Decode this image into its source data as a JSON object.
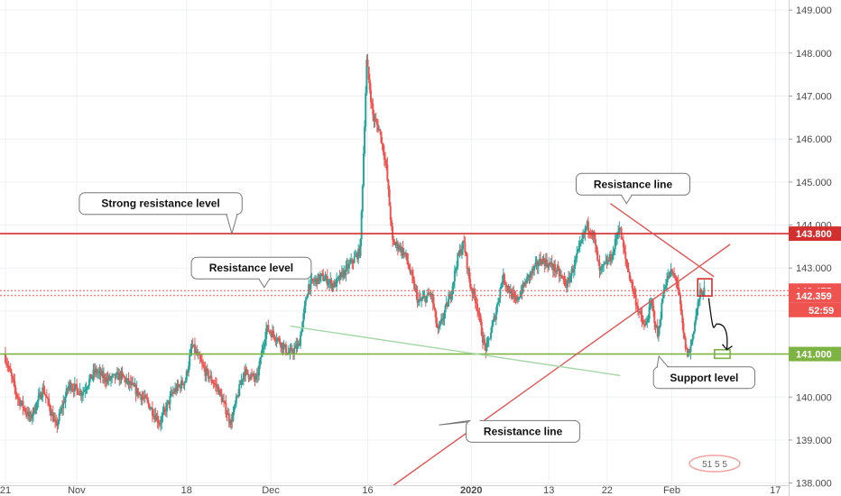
{
  "chart_data": {
    "type": "candlestick",
    "instrument_quote": "USD/JPY style price (JPY)",
    "ylim": [
      137.95,
      149.15
    ],
    "y_ticks": [
      "149.000",
      "148.000",
      "147.000",
      "146.000",
      "145.000",
      "144.000",
      "143.000",
      "142.000",
      "141.000",
      "140.000",
      "139.000",
      "138.000"
    ],
    "x_ticks": [
      {
        "label": "21",
        "day": 0,
        "bold": false
      },
      {
        "label": "Nov",
        "day": 11,
        "bold": false
      },
      {
        "label": "18",
        "day": 28,
        "bold": false
      },
      {
        "label": "Dec",
        "day": 41,
        "bold": false
      },
      {
        "label": "16",
        "day": 56,
        "bold": false
      },
      {
        "label": "2020",
        "day": 72,
        "bold": true
      },
      {
        "label": "13",
        "day": 84,
        "bold": false
      },
      {
        "label": "22",
        "day": 93,
        "bold": false
      },
      {
        "label": "Feb",
        "day": 103,
        "bold": false
      },
      {
        "label": "17",
        "day": 119,
        "bold": false
      }
    ],
    "x_range_days": [
      0,
      120.5
    ],
    "price_path": [
      [
        0,
        141.0
      ],
      [
        2,
        140.0
      ],
      [
        4,
        139.5
      ],
      [
        6,
        140.2
      ],
      [
        8,
        139.3
      ],
      [
        10,
        140.3
      ],
      [
        12,
        140.1
      ],
      [
        14,
        140.6
      ],
      [
        16,
        140.4
      ],
      [
        18,
        140.5
      ],
      [
        20,
        140.2
      ],
      [
        22,
        139.9
      ],
      [
        24,
        139.4
      ],
      [
        26,
        140.1
      ],
      [
        28,
        140.4
      ],
      [
        29,
        141.2
      ],
      [
        31,
        140.6
      ],
      [
        33,
        140.2
      ],
      [
        35,
        139.4
      ],
      [
        37,
        140.6
      ],
      [
        39,
        140.4
      ],
      [
        40.5,
        141.6
      ],
      [
        42,
        141.4
      ],
      [
        44,
        141.0
      ],
      [
        45.5,
        141.2
      ],
      [
        47,
        142.6
      ],
      [
        49,
        142.8
      ],
      [
        51,
        142.6
      ],
      [
        53,
        143.0
      ],
      [
        55,
        143.4
      ],
      [
        56,
        147.8
      ],
      [
        57,
        146.5
      ],
      [
        58,
        146.2
      ],
      [
        59,
        145.4
      ],
      [
        60,
        143.6
      ],
      [
        61,
        143.5
      ],
      [
        62,
        143.3
      ],
      [
        64,
        142.2
      ],
      [
        66,
        142.4
      ],
      [
        67,
        141.5
      ],
      [
        69,
        142.4
      ],
      [
        70,
        143.2
      ],
      [
        71,
        143.6
      ],
      [
        72,
        142.6
      ],
      [
        73,
        142.2
      ],
      [
        74,
        141.3
      ],
      [
        74.5,
        141.1
      ],
      [
        76,
        142.0
      ],
      [
        77,
        142.8
      ],
      [
        79,
        142.2
      ],
      [
        81,
        142.8
      ],
      [
        83,
        143.2
      ],
      [
        85,
        143.0
      ],
      [
        87,
        142.6
      ],
      [
        89,
        143.5
      ],
      [
        90,
        144.0
      ],
      [
        91,
        143.8
      ],
      [
        92,
        142.9
      ],
      [
        94,
        143.3
      ],
      [
        95,
        144.0
      ],
      [
        96,
        143.2
      ],
      [
        98,
        142.0
      ],
      [
        99,
        141.6
      ],
      [
        100,
        142.2
      ],
      [
        101,
        141.4
      ],
      [
        102,
        142.6
      ],
      [
        103,
        142.9
      ],
      [
        104,
        142.7
      ],
      [
        105,
        141.4
      ],
      [
        105.5,
        141.0
      ],
      [
        106,
        141.1
      ],
      [
        107,
        142.0
      ],
      [
        107.5,
        142.4
      ],
      [
        108,
        142.45
      ]
    ],
    "horizontal_levels": [
      {
        "price": 143.8,
        "label": "143.800",
        "color": "#d32f2f",
        "style": "solid"
      },
      {
        "price": 142.475,
        "label": "142.475",
        "color": "#ef5350",
        "style": "dotted"
      },
      {
        "price": 142.359,
        "label": "142.359",
        "color": "#ef5350",
        "style": "dotted"
      },
      {
        "price": 141.0,
        "label": "141.000",
        "color": "#7cb342",
        "style": "solid"
      }
    ],
    "last_price_sublabel": "52:59",
    "trendlines": [
      {
        "from": [
          60,
          137.95
        ],
        "to": [
          112,
          143.55
        ],
        "color": "#e05555"
      },
      {
        "from": [
          93.5,
          144.5
        ],
        "to": [
          109.5,
          142.8
        ],
        "color": "#e05555"
      },
      {
        "from": [
          44,
          141.65
        ],
        "to": [
          95,
          140.5
        ],
        "color": "#a5d6a7"
      }
    ],
    "target_boxes": [
      {
        "x": [
          107,
          109.2
        ],
        "y": [
          142.35,
          142.75
        ],
        "color": "#d32f2f"
      },
      {
        "x": [
          109.6,
          112
        ],
        "y": [
          140.9,
          141.1
        ],
        "color": "#7cb342"
      }
    ],
    "projection_path": [
      [
        108.7,
        142.3
      ],
      [
        110,
        141.7
      ],
      [
        111,
        141.9
      ],
      [
        111.5,
        141.1
      ]
    ],
    "annotations": [
      {
        "text": "Strong resistance level",
        "anchor": [
          35,
          143.8
        ],
        "pos": [
          24,
          144.5
        ]
      },
      {
        "text": "Resistance level",
        "anchor": [
          40,
          142.55
        ],
        "pos": [
          38,
          143.0
        ]
      },
      {
        "text": "Resistance line",
        "anchor": [
          96,
          144.5
        ],
        "pos": [
          97,
          144.95
        ]
      },
      {
        "text": "Support level",
        "anchor": [
          101,
          140.95
        ],
        "pos": [
          108,
          140.45
        ]
      },
      {
        "text": "Resistance line",
        "anchor": [
          67,
          139.35
        ],
        "pos": [
          80,
          139.2
        ]
      }
    ],
    "watermark_text": "51 5 5"
  },
  "colors": {
    "bull": "#26a69a",
    "bear": "#ef5350",
    "grid": "#eef0f3",
    "axis_text": "#4a4a4a"
  }
}
